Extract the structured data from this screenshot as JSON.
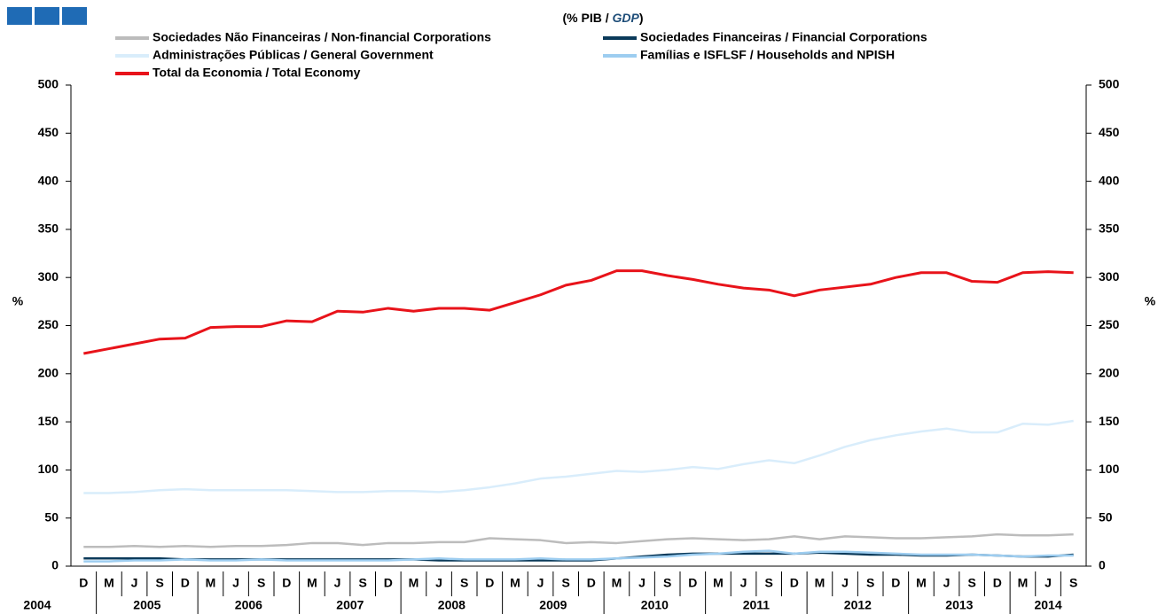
{
  "chart_data": {
    "type": "line",
    "title_parts": [
      "(% PIB / ",
      "GDP",
      ")"
    ],
    "y_label": "%",
    "y2_label": "%",
    "categories": [
      "D",
      "M",
      "J",
      "S",
      "D",
      "M",
      "J",
      "S",
      "D",
      "M",
      "J",
      "S",
      "D",
      "M",
      "J",
      "S",
      "D",
      "M",
      "J",
      "S",
      "D",
      "M",
      "J",
      "S",
      "D",
      "M",
      "J",
      "S",
      "D",
      "M",
      "J",
      "S",
      "D",
      "M",
      "J",
      "S",
      "D",
      "M",
      "J",
      "S"
    ],
    "year_labels": [
      "2004",
      "2005",
      "2006",
      "2007",
      "2008",
      "2009",
      "2010",
      "2011",
      "2012",
      "2013",
      "2014"
    ],
    "ylim": [
      0,
      500
    ],
    "yticks": [
      0,
      50,
      100,
      150,
      200,
      250,
      300,
      350,
      400,
      450,
      500
    ],
    "y2lim": [
      0,
      500
    ],
    "y2ticks": [
      0,
      50,
      100,
      150,
      200,
      250,
      300,
      350,
      400,
      450,
      500
    ],
    "series": [
      {
        "name": "Sociedades Não Financeiras / Non-financial Corporations",
        "color": "#bcbcbc",
        "values": [
          20,
          20,
          21,
          20,
          21,
          20,
          21,
          21,
          22,
          24,
          24,
          22,
          24,
          24,
          25,
          25,
          29,
          28,
          27,
          24,
          25,
          24,
          26,
          28,
          29,
          28,
          27,
          28,
          31,
          28,
          31,
          30,
          29,
          29,
          30,
          31,
          33,
          32,
          32,
          33
        ]
      },
      {
        "name": "Sociedades Financeiras / Financial Corporations",
        "color": "#0b3a5a",
        "values": [
          8,
          8,
          8,
          8,
          7,
          7,
          7,
          7,
          7,
          7,
          7,
          7,
          7,
          7,
          6,
          6,
          6,
          6,
          6,
          6,
          6,
          8,
          10,
          12,
          13,
          13,
          13,
          13,
          13,
          14,
          13,
          12,
          12,
          11,
          11,
          12,
          11,
          10,
          10,
          12
        ]
      },
      {
        "name": "Administrações Públicas / General Government",
        "color": "#d9edfb",
        "values": [
          76,
          76,
          77,
          79,
          80,
          79,
          79,
          79,
          79,
          78,
          77,
          77,
          78,
          78,
          77,
          79,
          82,
          86,
          91,
          93,
          96,
          99,
          98,
          100,
          103,
          101,
          106,
          110,
          107,
          115,
          124,
          131,
          136,
          140,
          143,
          139,
          139,
          148,
          147,
          151
        ]
      },
      {
        "name": "Famílias e ISFLSF / Households and NPISH",
        "color": "#9dcdf0",
        "values": [
          5,
          5,
          6,
          6,
          7,
          6,
          6,
          7,
          6,
          6,
          6,
          6,
          6,
          7,
          8,
          7,
          7,
          7,
          8,
          7,
          7,
          8,
          9,
          10,
          12,
          13,
          15,
          16,
          13,
          15,
          15,
          14,
          13,
          12,
          12,
          12,
          11,
          10,
          11,
          11
        ]
      },
      {
        "name": "Total da Economia / Total Economy",
        "color": "#e8131a",
        "values": [
          221,
          226,
          231,
          236,
          237,
          248,
          249,
          249,
          255,
          254,
          265,
          264,
          268,
          265,
          268,
          268,
          266,
          274,
          282,
          292,
          297,
          307,
          307,
          302,
          298,
          293,
          289,
          287,
          281,
          287,
          290,
          293,
          300,
          305,
          305,
          296,
          295,
          305,
          306,
          305
        ]
      }
    ]
  }
}
